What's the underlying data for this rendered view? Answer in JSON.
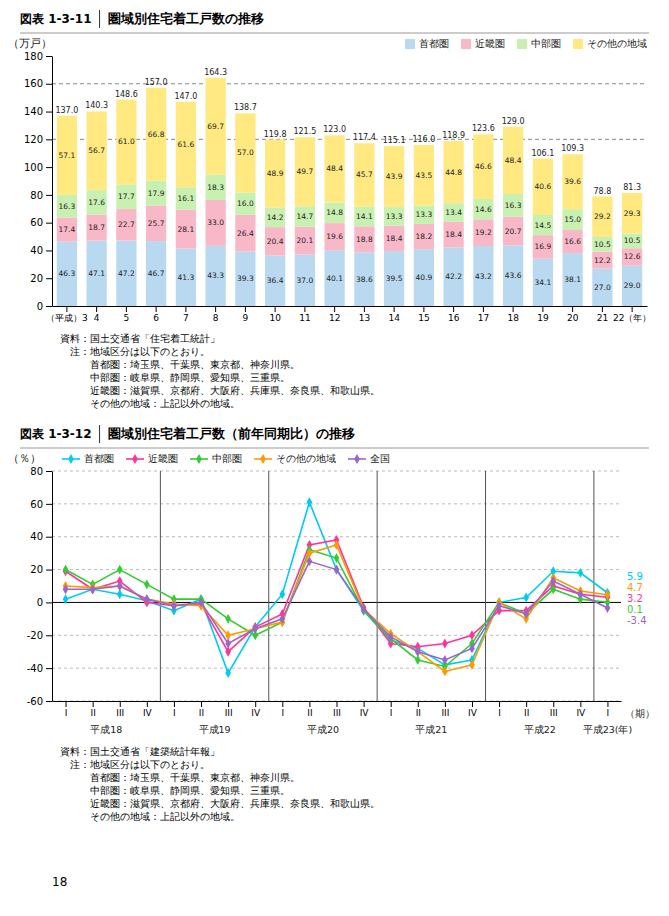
{
  "chart_data": [
    {
      "type": "bar",
      "stacked": true,
      "data_labels": true,
      "figure_number": "図表 1-3-11",
      "title": "圏域別住宅着工戸数の推移",
      "ylabel": "（万戸）",
      "categories": [
        "（平成）3",
        "4",
        "5",
        "6",
        "7",
        "8",
        "9",
        "10",
        "11",
        "12",
        "13",
        "14",
        "15",
        "16",
        "17",
        "18",
        "19",
        "20",
        "21",
        "22（年）"
      ],
      "series": [
        {
          "name": "首都圏",
          "color": "#b8d9f0",
          "values": [
            46.3,
            47.1,
            47.2,
            46.7,
            41.3,
            43.3,
            39.3,
            36.4,
            37.0,
            40.1,
            38.6,
            39.5,
            40.9,
            42.2,
            43.2,
            43.6,
            34.1,
            38.1,
            27.0,
            29.0
          ],
          "value_labels": [
            "46.3",
            "47.1",
            "47.2",
            "46.7",
            "41.3",
            "43.3",
            "39.3",
            "36.4",
            "37.0",
            "40.1",
            "38.6",
            "39.5",
            "40.9",
            "42.2",
            "43.2",
            "43.6",
            "34.1",
            "38.1",
            "27.0",
            "29.0"
          ]
        },
        {
          "name": "近畿圏",
          "color": "#f9b8c8",
          "values": [
            17.4,
            18.7,
            22.7,
            25.7,
            28.1,
            33.0,
            26.4,
            20.4,
            20.1,
            19.6,
            18.8,
            18.4,
            18.2,
            18.4,
            19.2,
            20.7,
            16.9,
            16.6,
            12.2,
            12.6
          ],
          "value_labels": [
            "17.4",
            "18.7",
            "22.7",
            "25.7",
            "28.1",
            "33.0",
            "26.4",
            "20.4",
            "20.1",
            "19.6",
            "18.8",
            "18.4",
            "18.2",
            "18.4",
            "19.2",
            "20.7",
            "16.9",
            "16.6",
            "12.2",
            "12.6"
          ]
        },
        {
          "name": "中部圏",
          "color": "#c8f0b0",
          "values": [
            16.3,
            17.6,
            17.7,
            17.9,
            16.1,
            18.3,
            16.0,
            14.2,
            14.7,
            14.8,
            14.1,
            13.3,
            13.3,
            13.4,
            14.6,
            16.3,
            14.5,
            15.0,
            10.5,
            10.5
          ],
          "value_labels": [
            "16.3",
            "17.6",
            "17.7",
            "17.9",
            "16.1",
            "18.3",
            "16.0",
            "14.2",
            "14.7",
            "14.8",
            "14.1",
            "13.3",
            "13.3",
            "13.4",
            "14.6",
            "16.3",
            "14.5",
            "15.0",
            "10.5",
            "10.5"
          ]
        },
        {
          "name": "その他の地域",
          "color": "#ffe980",
          "values": [
            57.1,
            56.7,
            61.0,
            66.8,
            61.6,
            69.7,
            57.0,
            48.9,
            49.7,
            48.4,
            45.7,
            43.9,
            43.5,
            44.8,
            46.6,
            48.4,
            40.6,
            39.6,
            29.2,
            29.3
          ],
          "value_labels": [
            "57.1",
            "56.7",
            "61.0",
            "66.8",
            "61.6",
            "69.7",
            "57.0",
            "48.9",
            "49.7",
            "48.4",
            "45.7",
            "43.9",
            "43.5",
            "44.8",
            "46.6",
            "48.4",
            "40.6",
            "39.6",
            "29.2",
            "29.3"
          ]
        }
      ],
      "totals": {
        "values": [
          137.0,
          140.3,
          148.6,
          157.0,
          147.0,
          164.3,
          138.7,
          119.8,
          121.5,
          123.0,
          117.4,
          115.1,
          116.0,
          118.9,
          123.6,
          129.0,
          106.1,
          109.3,
          78.8,
          81.3
        ],
        "value_labels": [
          "137.0",
          "140.3",
          "148.6",
          "157.0",
          "147.0",
          "164.3",
          "138.7",
          "119.8",
          "121.5",
          "123.0",
          "117.4",
          "115.1",
          "116.0",
          "118.9",
          "123.6",
          "129.0",
          "106.1",
          "109.3",
          "78.8",
          "81.3"
        ]
      },
      "ylim": [
        0,
        180
      ],
      "yticks": [
        0,
        20,
        40,
        60,
        80,
        100,
        120,
        140,
        160,
        180
      ],
      "reference_lines": [
        120,
        160
      ],
      "legend": "upper-right",
      "notes": [
        "資料：国土交通省「住宅着工統計」",
        "　注：地域区分は以下のとおり。",
        "　　　首都圏：埼玉県、千葉県、東京都、神奈川県。",
        "　　　中部圏：岐阜県、静岡県、愛知県、三重県。",
        "　　　近畿圏：滋賀県、京都府、大阪府、兵庫県、奈良県、和歌山県。",
        "　　　その他の地域：上記以外の地域。"
      ]
    },
    {
      "type": "line",
      "marker": "diamond",
      "grid": true,
      "legend": "upper-left",
      "figure_number": "図表 1-3-12",
      "title": "圏域別住宅着工戸数（前年同期比）の推移",
      "xlabel": "（期）",
      "ylabel": "（％）",
      "categories": [
        "I",
        "II",
        "III",
        "IV",
        "I",
        "II",
        "III",
        "IV",
        "I",
        "II",
        "III",
        "IV",
        "I",
        "II",
        "III",
        "IV",
        "I",
        "II",
        "III",
        "IV",
        "I"
      ],
      "periods": [
        "平成18",
        "平成19",
        "平成20",
        "平成21",
        "平成22",
        "平成23(年)"
      ],
      "series": [
        {
          "name": "首都圏",
          "color": "#00ccee",
          "values": [
            2.0,
            8.0,
            5.0,
            1.0,
            -5.0,
            2.0,
            -43.0,
            -15.0,
            5.0,
            61.0,
            20.0,
            -5.0,
            -23.0,
            -28.0,
            -38.0,
            -35.0,
            0.0,
            3.0,
            19.0,
            18.0,
            5.9
          ]
        },
        {
          "name": "近畿圏",
          "color": "#ff3399",
          "values": [
            19.0,
            8.0,
            13.0,
            0.0,
            -2.0,
            -1.0,
            -30.0,
            -15.0,
            -7.0,
            35.0,
            38.0,
            -3.0,
            -25.0,
            -27.0,
            -25.0,
            -20.0,
            -5.0,
            -5.0,
            10.0,
            5.0,
            3.2
          ]
        },
        {
          "name": "中部圏",
          "color": "#33cc33",
          "values": [
            20.0,
            11.0,
            20.0,
            11.0,
            2.0,
            2.0,
            -10.0,
            -20.0,
            -12.0,
            32.0,
            27.0,
            -5.0,
            -22.0,
            -35.0,
            -39.0,
            -25.0,
            0.0,
            -7.0,
            8.0,
            2.0,
            0.1
          ]
        },
        {
          "name": "その他の地域",
          "color": "#ff9900",
          "values": [
            10.0,
            9.0,
            10.0,
            2.0,
            -1.0,
            -2.0,
            -20.0,
            -16.0,
            -12.0,
            30.0,
            35.0,
            -4.0,
            -19.0,
            -30.0,
            -42.0,
            -38.0,
            0.0,
            -10.0,
            15.0,
            7.0,
            4.7
          ]
        },
        {
          "name": "全国",
          "color": "#9966cc",
          "values": [
            8.0,
            8.0,
            10.0,
            2.0,
            -2.0,
            0.0,
            -25.0,
            -16.0,
            -10.0,
            25.0,
            20.0,
            -4.0,
            -21.0,
            -30.0,
            -35.0,
            -28.0,
            -2.0,
            -7.0,
            13.0,
            5.0,
            -3.4
          ]
        }
      ],
      "annotations": [
        {
          "text": "5.9",
          "y": 5.9,
          "color": "#00ccee"
        },
        {
          "text": "4.7",
          "y": 4.7,
          "color": "#ff9900"
        },
        {
          "text": "3.2",
          "y": 3.2,
          "color": "#ff3399"
        },
        {
          "text": "0.1",
          "y": 0.1,
          "color": "#33cc33"
        },
        {
          "text": "-3.4",
          "y": -3.4,
          "color": "#9966cc"
        }
      ],
      "ylim": [
        -60,
        80
      ],
      "yticks": [
        -60,
        -40,
        -20,
        0,
        20,
        40,
        60,
        80
      ],
      "notes": [
        "資料：国土交通省「建築統計年報」",
        "　注：地域区分は以下のとおり。",
        "　　　首都圏：埼玉県、千葉県、東京都、神奈川県。",
        "　　　中部圏：岐阜県、静岡県、愛知県、三重県。",
        "　　　近畿圏：滋賀県、京都府、大阪府、兵庫県、奈良県、和歌山県。",
        "　　　その他の地域：上記以外の地域。"
      ]
    }
  ],
  "page_number": "18"
}
